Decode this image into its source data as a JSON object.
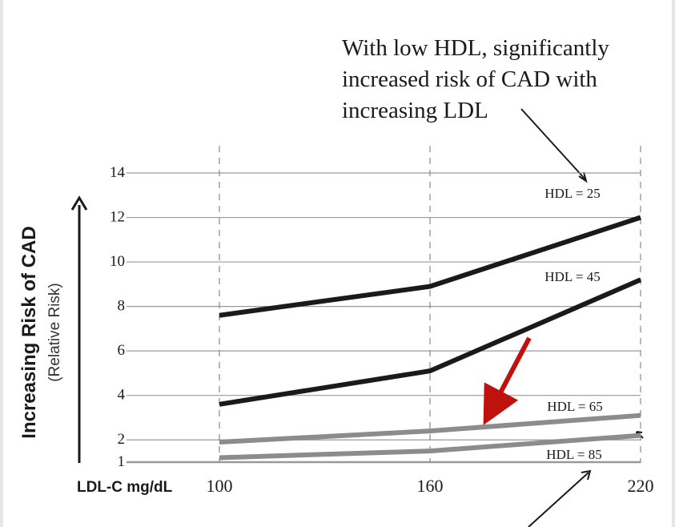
{
  "chart_data": {
    "type": "line",
    "annotation": [
      "With low HDL, significantly",
      "increased risk of CAD with",
      "increasing LDL"
    ],
    "ylabel_main": "Increasing Risk of CAD",
    "ylabel_sub": "(Relative Risk)",
    "xlabel": "LDL-C mg/dL",
    "x": [
      100,
      160,
      220
    ],
    "x_tick_labels": [
      "100",
      "160",
      "220"
    ],
    "y_ticks": [
      1,
      2,
      4,
      6,
      8,
      10,
      12,
      14
    ],
    "y_tick_labels": [
      "1",
      "2",
      "4",
      "6",
      "8",
      "10",
      "12",
      "14"
    ],
    "ylim": [
      0.8,
      14.2
    ],
    "xlim": [
      100,
      220
    ],
    "grid": "horizontal lines at y ticks, dashed vertical lines at x ticks",
    "series": [
      {
        "name": "HDL = 25",
        "values": [
          7.6,
          8.9,
          12.0
        ],
        "color": "#1a1a1a"
      },
      {
        "name": "HDL = 45",
        "values": [
          3.6,
          5.1,
          9.2
        ],
        "color": "#1a1a1a"
      },
      {
        "name": "HDL = 65",
        "values": [
          1.9,
          2.4,
          3.1
        ],
        "color": "#8c8c8c"
      },
      {
        "name": "HDL = 85",
        "values": [
          1.2,
          1.5,
          2.2
        ],
        "color": "#8c8c8c"
      }
    ],
    "highlight_arrow_color": "#c0120c"
  }
}
